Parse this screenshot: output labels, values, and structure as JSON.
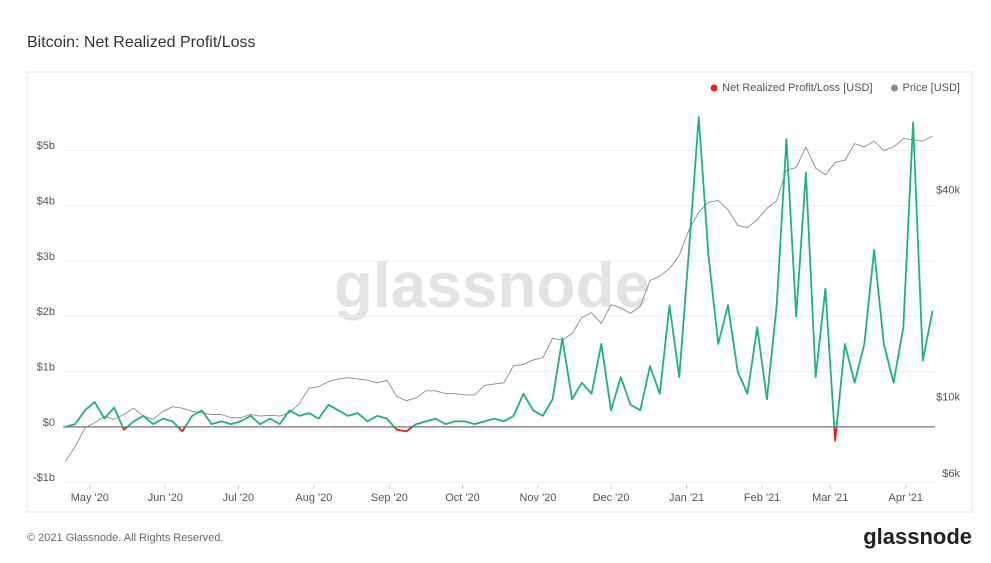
{
  "chart_data": {
    "type": "line",
    "title": "Bitcoin: Net Realized Profit/Loss",
    "watermark": "glassnode",
    "footer": "© 2021 Glassnode. All Rights Reserved.",
    "logo": "glassnode",
    "legend": "top-right",
    "grid": true,
    "x": [
      "2020-04-21",
      "2020-04-25",
      "2020-04-29",
      "2020-05-03",
      "2020-05-07",
      "2020-05-11",
      "2020-05-15",
      "2020-05-19",
      "2020-05-23",
      "2020-05-27",
      "2020-05-31",
      "2020-06-04",
      "2020-06-08",
      "2020-06-12",
      "2020-06-16",
      "2020-06-20",
      "2020-06-24",
      "2020-06-28",
      "2020-07-02",
      "2020-07-06",
      "2020-07-10",
      "2020-07-14",
      "2020-07-18",
      "2020-07-22",
      "2020-07-26",
      "2020-07-30",
      "2020-08-03",
      "2020-08-07",
      "2020-08-11",
      "2020-08-15",
      "2020-08-19",
      "2020-08-23",
      "2020-08-27",
      "2020-08-31",
      "2020-09-04",
      "2020-09-08",
      "2020-09-12",
      "2020-09-16",
      "2020-09-20",
      "2020-09-24",
      "2020-09-28",
      "2020-10-02",
      "2020-10-06",
      "2020-10-10",
      "2020-10-14",
      "2020-10-18",
      "2020-10-22",
      "2020-10-26",
      "2020-10-30",
      "2020-11-03",
      "2020-11-07",
      "2020-11-11",
      "2020-11-15",
      "2020-11-19",
      "2020-11-23",
      "2020-11-27",
      "2020-12-01",
      "2020-12-05",
      "2020-12-09",
      "2020-12-13",
      "2020-12-17",
      "2020-12-21",
      "2020-12-25",
      "2020-12-29",
      "2021-01-02",
      "2021-01-06",
      "2021-01-10",
      "2021-01-14",
      "2021-01-18",
      "2021-01-22",
      "2021-01-26",
      "2021-01-30",
      "2021-02-03",
      "2021-02-07",
      "2021-02-11",
      "2021-02-15",
      "2021-02-19",
      "2021-02-23",
      "2021-02-27",
      "2021-03-03",
      "2021-03-07",
      "2021-03-11",
      "2021-03-15",
      "2021-03-19",
      "2021-03-23",
      "2021-03-27",
      "2021-03-31",
      "2021-04-04",
      "2021-04-08",
      "2021-04-12"
    ],
    "xlim": [
      "2020-04-20",
      "2021-04-13"
    ],
    "xticks": [
      {
        "value": "2020-05",
        "label": "May '20"
      },
      {
        "value": "2020-06",
        "label": "Jun '20"
      },
      {
        "value": "2020-07",
        "label": "Jul '20"
      },
      {
        "value": "2020-08",
        "label": "Aug '20"
      },
      {
        "value": "2020-09",
        "label": "Sep '20"
      },
      {
        "value": "2020-10",
        "label": "Oct '20"
      },
      {
        "value": "2020-11",
        "label": "Nov '20"
      },
      {
        "value": "2020-12",
        "label": "Dec '20"
      },
      {
        "value": "2021-01",
        "label": "Jan '21"
      },
      {
        "value": "2021-02",
        "label": "Feb '21"
      },
      {
        "value": "2021-03",
        "label": "Mar '21"
      },
      {
        "value": "2021-04",
        "label": "Apr '21"
      }
    ],
    "ylim": [
      -1.05,
      6
    ],
    "yticks": [
      {
        "value": -1,
        "label": "-$1b"
      },
      {
        "value": 0,
        "label": "$0"
      },
      {
        "value": 1,
        "label": "$1b"
      },
      {
        "value": 2,
        "label": "$2b"
      },
      {
        "value": 3,
        "label": "$3b"
      },
      {
        "value": 4,
        "label": "$4b"
      },
      {
        "value": 5,
        "label": "$5b"
      }
    ],
    "y2lim": [
      5800,
      79000
    ],
    "y2log": true,
    "y2ticks": [
      {
        "value": 6000,
        "label": "$6k"
      },
      {
        "value": 10000,
        "label": "$10k"
      },
      {
        "value": 40000,
        "label": "$40k"
      }
    ],
    "series": [
      {
        "name": "Net Realized Profit/Loss [USD]",
        "color": "#e5241f",
        "positive_color": "#1bb47a",
        "values": [
          0,
          0.05,
          0.3,
          0.45,
          0.15,
          0.35,
          -0.05,
          0.1,
          0.2,
          0.05,
          0.15,
          0.1,
          -0.08,
          0.2,
          0.3,
          0.05,
          0.1,
          0.05,
          0.1,
          0.2,
          0.05,
          0.15,
          0.05,
          0.3,
          0.2,
          0.25,
          0.15,
          0.4,
          0.3,
          0.2,
          0.25,
          0.1,
          0.2,
          0.15,
          -0.05,
          -0.08,
          0.05,
          0.1,
          0.15,
          0.05,
          0.1,
          0.1,
          0.05,
          0.1,
          0.15,
          0.1,
          0.2,
          0.6,
          0.3,
          0.2,
          0.5,
          1.6,
          0.5,
          0.8,
          0.6,
          1.5,
          0.3,
          0.9,
          0.4,
          0.3,
          1.1,
          0.6,
          2.2,
          0.9,
          3.2,
          5.6,
          3.1,
          1.5,
          2.2,
          1.0,
          0.6,
          1.8,
          0.5,
          2.2,
          5.2,
          2.0,
          4.6,
          0.9,
          2.5,
          -0.25,
          1.5,
          0.8,
          1.5,
          3.2,
          1.5,
          0.8,
          1.8,
          5.5,
          1.2,
          2.1
        ]
      },
      {
        "name": "Price [USD]",
        "color": "#8a8a8a",
        "axis": "y2",
        "values": [
          6800,
          7500,
          8500,
          8800,
          9200,
          9000,
          9300,
          9700,
          9200,
          9000,
          9500,
          9800,
          9700,
          9500,
          9400,
          9300,
          9300,
          9100,
          9100,
          9300,
          9200,
          9250,
          9200,
          9400,
          10000,
          11100,
          11200,
          11600,
          11800,
          11900,
          11800,
          11700,
          11500,
          11700,
          10500,
          10200,
          10400,
          10900,
          10900,
          10700,
          10700,
          10600,
          10600,
          11300,
          11400,
          11500,
          12900,
          13000,
          13400,
          13600,
          15500,
          15300,
          16000,
          17800,
          18400,
          17100,
          19400,
          19000,
          18300,
          19200,
          22800,
          23500,
          24700,
          27000,
          32000,
          36000,
          38500,
          39000,
          36600,
          33000,
          32500,
          34300,
          37000,
          38900,
          47800,
          48600,
          55800,
          48400,
          46300,
          50300,
          51000,
          57000,
          55800,
          58000,
          54500,
          55800,
          59000,
          58500,
          58000,
          60000
        ]
      }
    ]
  }
}
